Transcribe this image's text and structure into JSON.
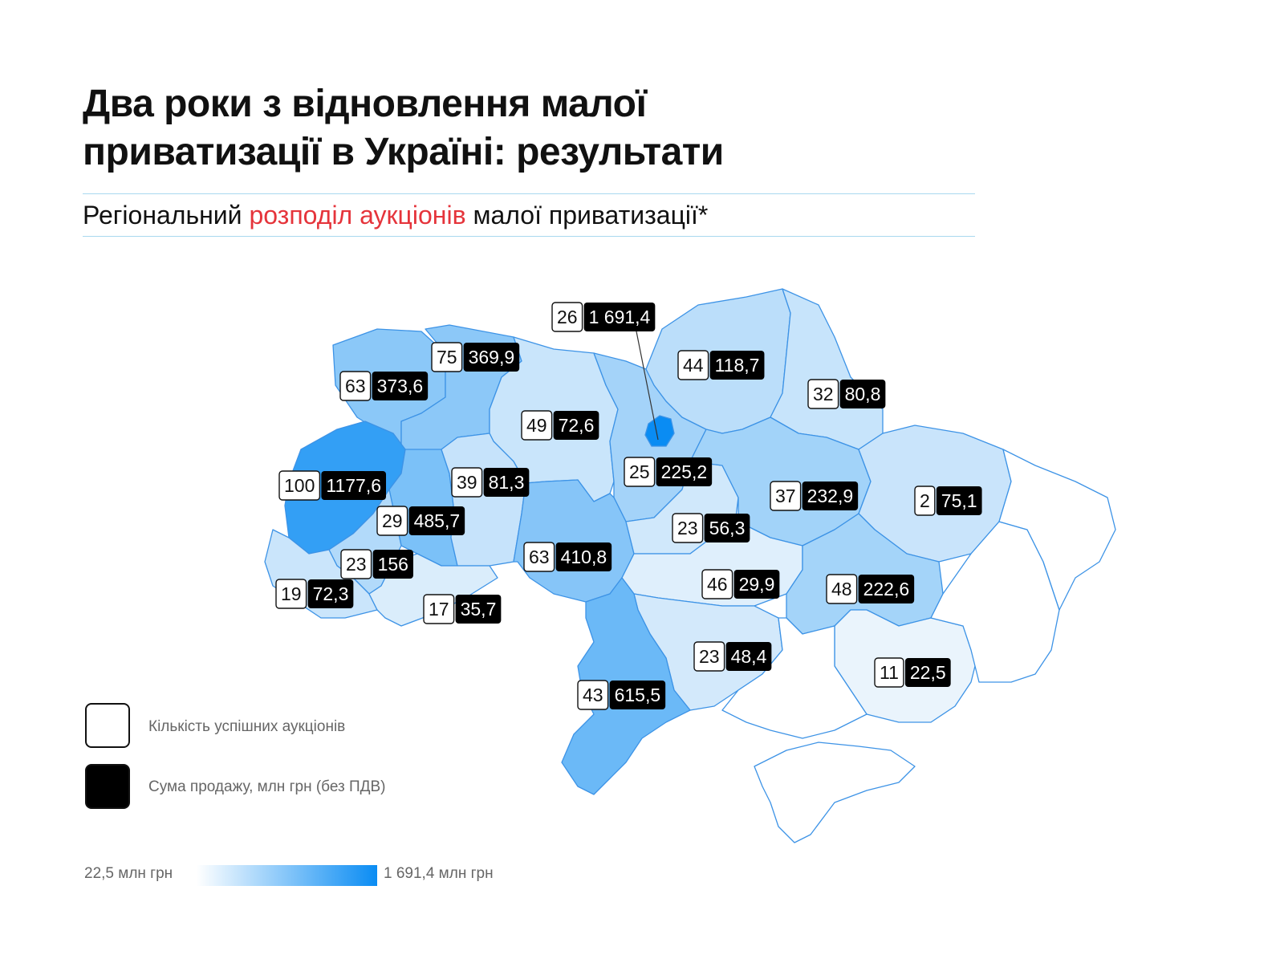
{
  "title": {
    "line1": "Два роки з відновлення малої",
    "line2": "приватизації в Україні: результати"
  },
  "subtitle": {
    "part1": "Регіональний ",
    "highlight": "розподіл аукціонів",
    "part2": " малої приватизації*"
  },
  "legend": {
    "count_label": "Кількість успішних аукціонів",
    "sum_label": "Сума продажу, млн грн (без ПДВ)"
  },
  "scale": {
    "min_label": "22,5 млн грн",
    "max_label": "1 691,4 млн грн",
    "min_value": 22.5,
    "max_value": 1691.4
  },
  "colors": {
    "accent_red": "#e5343b",
    "scale_low": "#ffffff",
    "scale_high": "#0a8cf3",
    "border": "#3d93e6"
  },
  "chart_data": {
    "type": "choropleth-map",
    "metric_color": "sales",
    "regions": [
      {
        "id": "volyn",
        "auctions": "63",
        "sales": "373,6",
        "value": 373.6
      },
      {
        "id": "rivne",
        "auctions": "75",
        "sales": "369,9",
        "value": 369.9
      },
      {
        "id": "zhytomyr",
        "auctions": "49",
        "sales": "72,6",
        "value": 72.6
      },
      {
        "id": "kyiv-city",
        "auctions": "26",
        "sales": "1 691,4",
        "value": 1691.4
      },
      {
        "id": "kyiv-oblast",
        "auctions": "25",
        "sales": "225,2",
        "value": 225.2
      },
      {
        "id": "chernihiv",
        "auctions": "44",
        "sales": "118,7",
        "value": 118.7
      },
      {
        "id": "sumy",
        "auctions": "32",
        "sales": "80,8",
        "value": 80.8
      },
      {
        "id": "lviv",
        "auctions": "100",
        "sales": "1177,6",
        "value": 1177.6
      },
      {
        "id": "ternopil",
        "auctions": "29",
        "sales": "485,7",
        "value": 485.7
      },
      {
        "id": "khmelnytskyi",
        "auctions": "39",
        "sales": "81,3",
        "value": 81.3
      },
      {
        "id": "vinnytsia",
        "auctions": "63",
        "sales": "410,8",
        "value": 410.8
      },
      {
        "id": "cherkasy",
        "auctions": "23",
        "sales": "56,3",
        "value": 56.3
      },
      {
        "id": "poltava",
        "auctions": "37",
        "sales": "232,9",
        "value": 232.9
      },
      {
        "id": "kharkiv",
        "auctions": "2",
        "sales": "75,1",
        "value": 75.1
      },
      {
        "id": "ivano-frankivsk",
        "auctions": "23",
        "sales": "156",
        "value": 156
      },
      {
        "id": "zakarpattia",
        "auctions": "19",
        "sales": "72,3",
        "value": 72.3
      },
      {
        "id": "chernivtsi",
        "auctions": "17",
        "sales": "35,7",
        "value": 35.7
      },
      {
        "id": "kirovohrad",
        "auctions": "46",
        "sales": "29,9",
        "value": 29.9
      },
      {
        "id": "dnipropetrovsk",
        "auctions": "48",
        "sales": "222,6",
        "value": 222.6
      },
      {
        "id": "mykolaiv",
        "auctions": "23",
        "sales": "48,4",
        "value": 48.4
      },
      {
        "id": "odesa",
        "auctions": "43",
        "sales": "615,5",
        "value": 615.5
      },
      {
        "id": "zaporizhzhia",
        "auctions": "11",
        "sales": "22,5",
        "value": 22.5
      },
      {
        "id": "donetsk",
        "auctions": "",
        "sales": "",
        "value": null
      },
      {
        "id": "luhansk",
        "auctions": "",
        "sales": "",
        "value": null
      },
      {
        "id": "kherson",
        "auctions": "",
        "sales": "",
        "value": null
      },
      {
        "id": "crimea",
        "auctions": "",
        "sales": "",
        "value": null
      }
    ]
  }
}
